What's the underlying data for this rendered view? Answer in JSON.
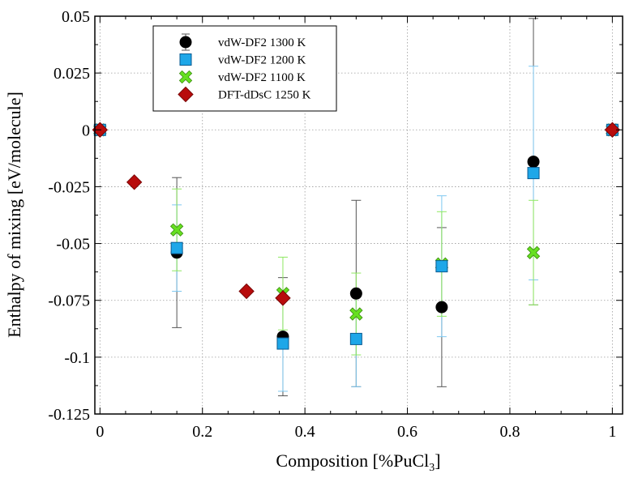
{
  "chart_data": {
    "type": "scatter",
    "xlabel": "Composition [%PuCl",
    "xlabel_sub": "3",
    "xlabel_end": "]",
    "ylabel": "Enthalpy of mixing [eV/molecule]",
    "xlim": [
      -0.01,
      1.02
    ],
    "ylim": [
      -0.125,
      0.05
    ],
    "x_ticks": [
      0,
      0.2,
      0.4,
      0.6,
      0.8,
      1
    ],
    "x_tick_labels": [
      "0",
      "0.2",
      "0.4",
      "0.6",
      "0.8",
      "1"
    ],
    "y_ticks": [
      0.05,
      0.025,
      0,
      -0.025,
      -0.05,
      -0.075,
      -0.1,
      -0.125
    ],
    "y_tick_labels": [
      "0.05",
      "0.025",
      "0",
      "-0.025",
      "-0.05",
      "-0.075",
      "-0.1",
      "-0.125"
    ],
    "grid": true,
    "legend_position": "top-left",
    "series": [
      {
        "name": "vdW-DF2 1300 K",
        "marker": "circle",
        "color": "#000000",
        "error_color": "#555555",
        "points": [
          {
            "x": 0,
            "y": 0,
            "err": 0
          },
          {
            "x": 0.15,
            "y": -0.054,
            "err": 0.033
          },
          {
            "x": 0.357,
            "y": -0.091,
            "err": 0.026
          },
          {
            "x": 0.5,
            "y": -0.072,
            "err": 0.041
          },
          {
            "x": 0.667,
            "y": -0.078,
            "err": 0.035
          },
          {
            "x": 0.846,
            "y": -0.014,
            "err": 0.063
          },
          {
            "x": 1,
            "y": 0,
            "err": 0
          }
        ]
      },
      {
        "name": "vdW-DF2 1200 K",
        "marker": "square",
        "color": "#1ea7e8",
        "error_color": "#7ec8f0",
        "points": [
          {
            "x": 0,
            "y": 0,
            "err": 0
          },
          {
            "x": 0.15,
            "y": -0.052,
            "err": 0.019
          },
          {
            "x": 0.357,
            "y": -0.094,
            "err": 0.021
          },
          {
            "x": 0.5,
            "y": -0.092,
            "err": 0.021
          },
          {
            "x": 0.667,
            "y": -0.06,
            "err": 0.031
          },
          {
            "x": 0.846,
            "y": -0.019,
            "err": 0.047
          },
          {
            "x": 1,
            "y": 0,
            "err": 0
          }
        ]
      },
      {
        "name": "vdW-DF2 1100 K",
        "marker": "x",
        "color": "#66e020",
        "error_color": "#8ee860",
        "points": [
          {
            "x": 0,
            "y": 0,
            "err": 0
          },
          {
            "x": 0.15,
            "y": -0.044,
            "err": 0.018
          },
          {
            "x": 0.357,
            "y": -0.072,
            "err": 0.016
          },
          {
            "x": 0.5,
            "y": -0.081,
            "err": 0.018
          },
          {
            "x": 0.667,
            "y": -0.059,
            "err": 0.023
          },
          {
            "x": 0.846,
            "y": -0.054,
            "err": 0.023
          },
          {
            "x": 1,
            "y": 0,
            "err": 0
          }
        ]
      },
      {
        "name": "DFT-dDsC 1250 K",
        "marker": "diamond",
        "color": "#b80c0c",
        "error_color": "#b80c0c",
        "points": [
          {
            "x": 0,
            "y": 0
          },
          {
            "x": 0.067,
            "y": -0.023
          },
          {
            "x": 0.286,
            "y": -0.071
          },
          {
            "x": 0.357,
            "y": -0.074
          },
          {
            "x": 1,
            "y": 0
          }
        ]
      }
    ]
  }
}
